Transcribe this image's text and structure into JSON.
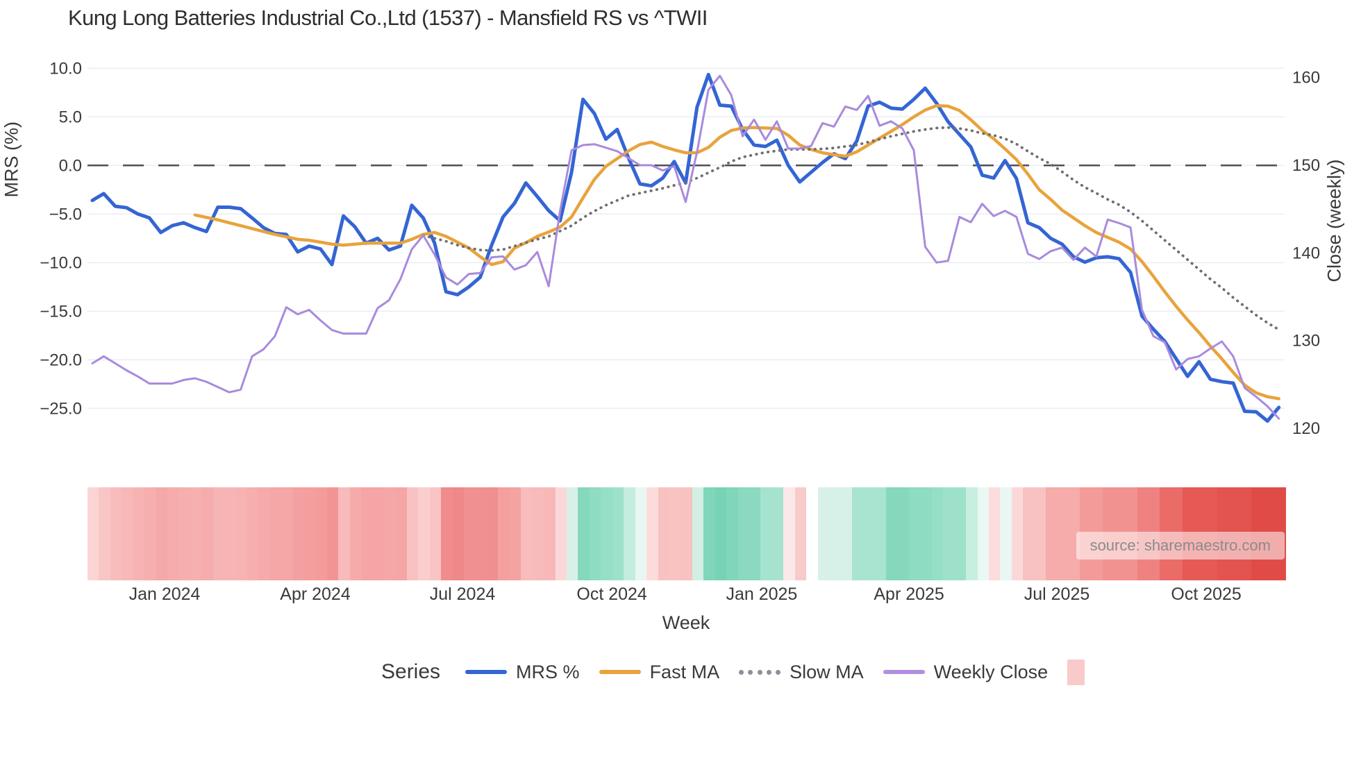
{
  "title": "Kung Long Batteries Industrial Co.,Ltd (1537) - Mansfield RS vs ^TWII",
  "source": "source: sharemaestro.com",
  "colors": {
    "mrs": "#3465d3",
    "fast_ma": "#e8a33c",
    "slow_ma": "#6e6e74",
    "weekly_close": "#a98add",
    "zero_dash": "#4f4f58",
    "grid": "#eceef5",
    "title_text": "#2e2e2e",
    "tick_text": "#3a3a3a",
    "legend_square": "#f9caca",
    "source_text": "#8b8b8b"
  },
  "axes": {
    "left": {
      "label": "MRS (%)",
      "tick_labels": [
        "10.0",
        "5.0",
        "0.0",
        "−5.0",
        "−10.0",
        "−15.0",
        "−20.0",
        "−25.0"
      ],
      "tick_values": [
        10,
        5,
        0,
        -5,
        -10,
        -15,
        -20,
        -25
      ]
    },
    "right": {
      "label": "Close (weekly)",
      "tick_labels": [
        "160",
        "150",
        "140",
        "130",
        "120"
      ],
      "tick_values": [
        160,
        150,
        140,
        130,
        120
      ]
    },
    "x": {
      "label": "Week",
      "ticks": [
        {
          "label": "Jan 2024",
          "week": 6.33
        },
        {
          "label": "Apr 2024",
          "week": 19.54
        },
        {
          "label": "Jul 2024",
          "week": 32.44
        },
        {
          "label": "Oct 2024",
          "week": 45.53
        },
        {
          "label": "Jan 2025",
          "week": 58.67
        },
        {
          "label": "Apr 2025",
          "week": 71.58
        },
        {
          "label": "Jul 2025",
          "week": 84.54
        },
        {
          "label": "Oct 2025",
          "week": 97.63
        }
      ]
    }
  },
  "legend": {
    "series_label": "Series",
    "items": [
      {
        "label": "MRS %",
        "swatch": "line",
        "color": "#3465d3"
      },
      {
        "label": "Fast MA",
        "swatch": "line",
        "color": "#e8a33c"
      },
      {
        "label": "Slow MA",
        "swatch": "dotted",
        "color": "#8a8f99"
      },
      {
        "label": "Weekly Close",
        "swatch": "line",
        "color": "#b18ee0"
      },
      {
        "label": "",
        "swatch": "square",
        "color": "#f9caca"
      }
    ]
  },
  "chart_data": {
    "type": "line",
    "x_unit": "weekly",
    "n_points": 105,
    "x_range_note": "weekly points from mid-Nov 2023 to mid-Nov 2025",
    "ylim_left": [
      -25,
      10
    ],
    "ylim_right": [
      120,
      160
    ],
    "grid": "horizontal-only",
    "zero_reference_line": 0,
    "legend_position": "bottom",
    "series": [
      {
        "name": "MRS %",
        "axis": "left",
        "style": "solid",
        "color": "#3465d3",
        "values": [
          -3.6,
          -2.9,
          -4.2,
          -4.35,
          -5.0,
          -5.4,
          -6.9,
          -6.2,
          -5.9,
          -6.4,
          -6.8,
          -4.3,
          -4.3,
          -4.45,
          -5.4,
          -6.4,
          -7.0,
          -7.1,
          -8.9,
          -8.3,
          -8.6,
          -10.2,
          -5.2,
          -6.3,
          -8.0,
          -7.5,
          -8.7,
          -8.3,
          -4.1,
          -5.4,
          -8.0,
          -13.0,
          -13.3,
          -12.5,
          -11.5,
          -8.2,
          -5.3,
          -3.9,
          -1.8,
          -3.2,
          -4.65,
          -5.7,
          -0.7,
          6.8,
          5.35,
          2.7,
          3.7,
          0.75,
          -1.9,
          -2.1,
          -1.3,
          0.4,
          -1.8,
          6.0,
          9.35,
          6.2,
          6.1,
          3.7,
          2.1,
          1.95,
          2.6,
          0.0,
          -1.7,
          -0.7,
          0.3,
          1.2,
          0.7,
          2.5,
          6.1,
          6.5,
          5.9,
          5.8,
          6.8,
          7.95,
          6.4,
          4.5,
          3.2,
          1.9,
          -1.0,
          -1.3,
          0.5,
          -1.35,
          -5.9,
          -6.4,
          -7.5,
          -8.1,
          -9.4,
          -9.95,
          -9.5,
          -9.4,
          -9.6,
          -11.0,
          -15.5,
          -16.85,
          -18.1,
          -19.9,
          -21.7,
          -20.2,
          -22.0,
          -22.25,
          -22.4,
          -25.3,
          -25.35,
          -26.3,
          -24.9
        ]
      },
      {
        "name": "Fast MA",
        "axis": "left",
        "style": "solid",
        "color": "#e8a33c",
        "values": [
          null,
          null,
          null,
          null,
          null,
          null,
          null,
          null,
          null,
          -5.1,
          -5.35,
          -5.6,
          -5.9,
          -6.2,
          -6.5,
          -6.8,
          -7.1,
          -7.35,
          -7.6,
          -7.7,
          -7.9,
          -8.1,
          -8.2,
          -8.1,
          -8.0,
          -8.0,
          -8.0,
          -8.0,
          -7.6,
          -7.1,
          -6.9,
          -7.3,
          -7.9,
          -8.5,
          -9.4,
          -10.2,
          -9.9,
          -8.5,
          -7.95,
          -7.3,
          -6.85,
          -6.35,
          -5.3,
          -3.35,
          -1.45,
          -0.1,
          0.7,
          1.5,
          2.15,
          2.4,
          1.95,
          1.6,
          1.3,
          1.3,
          1.85,
          2.9,
          3.6,
          3.85,
          3.9,
          3.85,
          3.8,
          3.1,
          2.1,
          1.65,
          1.3,
          1.1,
          0.95,
          1.4,
          2.1,
          2.8,
          3.5,
          4.2,
          5.0,
          5.7,
          6.15,
          6.1,
          5.65,
          4.7,
          3.6,
          2.75,
          1.7,
          0.6,
          -0.9,
          -2.5,
          -3.5,
          -4.6,
          -5.4,
          -6.2,
          -6.9,
          -7.4,
          -7.9,
          -8.6,
          -9.9,
          -11.4,
          -13.0,
          -14.5,
          -15.9,
          -17.2,
          -18.6,
          -19.9,
          -21.3,
          -22.6,
          -23.4,
          -23.8,
          -24.0
        ]
      },
      {
        "name": "Slow MA",
        "axis": "left",
        "style": "dotted",
        "color": "#6e6e74",
        "values": [
          null,
          null,
          null,
          null,
          null,
          null,
          null,
          null,
          null,
          null,
          null,
          null,
          null,
          null,
          null,
          null,
          null,
          null,
          null,
          null,
          null,
          null,
          null,
          null,
          null,
          null,
          null,
          null,
          null,
          -7.2,
          -7.5,
          -7.8,
          -8.2,
          -8.5,
          -8.7,
          -8.75,
          -8.65,
          -8.3,
          -7.95,
          -7.6,
          -7.3,
          -6.75,
          -6.2,
          -5.4,
          -4.7,
          -4.1,
          -3.6,
          -3.1,
          -2.85,
          -2.6,
          -2.35,
          -2.05,
          -1.75,
          -1.3,
          -0.75,
          -0.2,
          0.4,
          0.85,
          1.1,
          1.35,
          1.5,
          1.65,
          1.65,
          1.65,
          1.7,
          1.8,
          1.95,
          2.1,
          2.4,
          2.7,
          3.0,
          3.25,
          3.5,
          3.7,
          3.85,
          3.9,
          3.8,
          3.6,
          3.3,
          3.1,
          2.75,
          2.2,
          1.45,
          0.75,
          0.15,
          -0.65,
          -1.5,
          -2.25,
          -2.85,
          -3.5,
          -4.05,
          -4.8,
          -5.7,
          -6.7,
          -7.7,
          -8.7,
          -9.7,
          -10.7,
          -11.7,
          -12.6,
          -13.6,
          -14.5,
          -15.4,
          -16.2,
          -16.9
        ]
      },
      {
        "name": "Weekly Close",
        "axis": "right",
        "style": "solid",
        "color": "#a98add",
        "values": [
          127.4,
          128.2,
          127.4,
          126.6,
          125.9,
          125.1,
          125.1,
          125.1,
          125.5,
          125.7,
          125.3,
          124.7,
          124.1,
          124.4,
          128.2,
          129.0,
          130.5,
          133.8,
          133.0,
          133.5,
          132.3,
          131.2,
          130.8,
          130.8,
          130.8,
          133.7,
          134.6,
          137.0,
          140.4,
          142.0,
          139.8,
          137.2,
          136.4,
          137.6,
          137.7,
          139.5,
          139.6,
          138.1,
          138.6,
          140.1,
          136.2,
          144.8,
          151.7,
          152.3,
          152.4,
          152.0,
          151.6,
          150.8,
          150.0,
          150.0,
          149.4,
          149.9,
          145.8,
          151.5,
          158.6,
          160.2,
          158.0,
          153.3,
          155.2,
          152.9,
          155.0,
          151.9,
          151.9,
          152.2,
          154.8,
          154.4,
          156.7,
          156.3,
          157.9,
          154.5,
          155.0,
          154.2,
          151.7,
          140.7,
          138.9,
          139.1,
          144.1,
          143.5,
          145.6,
          144.2,
          144.8,
          144.1,
          139.9,
          139.3,
          140.2,
          140.6,
          139.2,
          140.6,
          139.6,
          143.8,
          143.4,
          142.9,
          133.5,
          130.5,
          129.8,
          126.7,
          127.9,
          128.2,
          129.1,
          129.9,
          128.2,
          124.6,
          123.6,
          122.5,
          121.1
        ]
      }
    ],
    "heat_strip": {
      "description": "weekly relative-strength heat band under chart; white = missing week",
      "colors": [
        "#fbd4d4",
        "#f9c6c6",
        "#f8bcbc",
        "#f8b8b8",
        "#f7b2b2",
        "#f6aeae",
        "#f5a8a8",
        "#f6acac",
        "#f6aeae",
        "#f6b0b0",
        "#f6acac",
        "#f7b4b4",
        "#f7b4b4",
        "#f7b2b2",
        "#f6aeae",
        "#f6aaaa",
        "#f5a6a6",
        "#f5a6a6",
        "#f4a0a0",
        "#f49e9e",
        "#f49c9c",
        "#f39494",
        "#f8baba",
        "#f6abab",
        "#f5a5a5",
        "#f5a5a5",
        "#f5a7a7",
        "#f5a5a5",
        "#f9c2c2",
        "#fbcece",
        "#f9c4c4",
        "#f08c8c",
        "#ef8888",
        "#f19090",
        "#f09090",
        "#ef8f8f",
        "#f4a0a0",
        "#f4a2a2",
        "#f8bcbc",
        "#f8baba",
        "#f8b8b8",
        "#fbd8d8",
        "#d9f0e8",
        "#86d8bc",
        "#8edcc2",
        "#96dfc7",
        "#9ee1ca",
        "#c4ecdf",
        "#e8f7f1",
        "#fcdcda",
        "#f8c2c0",
        "#f8c4c2",
        "#f8c2c0",
        "#d2efe4",
        "#7fd6ba",
        "#76d3b5",
        "#7fd6ba",
        "#8ad9c0",
        "#8ad9c0",
        "#a5e3cf",
        "#a5e3cf",
        "#fce8e8",
        "#f9caca",
        "#ffffff",
        "#d8f1e8",
        "#d8f1e8",
        "#d8f1e8",
        "#a8e4d0",
        "#a8e4d0",
        "#a8e4d0",
        "#86d8bc",
        "#86d8bc",
        "#8edcc2",
        "#8edcc2",
        "#96dfc7",
        "#9ee1ca",
        "#9ee1ca",
        "#c8eee0",
        "#eaf8f3",
        "#fcdcdc",
        "#e9f7f2",
        "#fbd8d8",
        "#f8c2c2",
        "#f8c2c2",
        "#f5acaa",
        "#f5acaa",
        "#f5acaa",
        "#f39b98",
        "#f39b98",
        "#f19290",
        "#f19290",
        "#f19290",
        "#ee8280",
        "#ee8280",
        "#ea6b68",
        "#ea6b68",
        "#e65955",
        "#e65955",
        "#e65955",
        "#e35350",
        "#e35350",
        "#e35350",
        "#e14b47",
        "#e14b47",
        "#e14b47"
      ]
    }
  }
}
